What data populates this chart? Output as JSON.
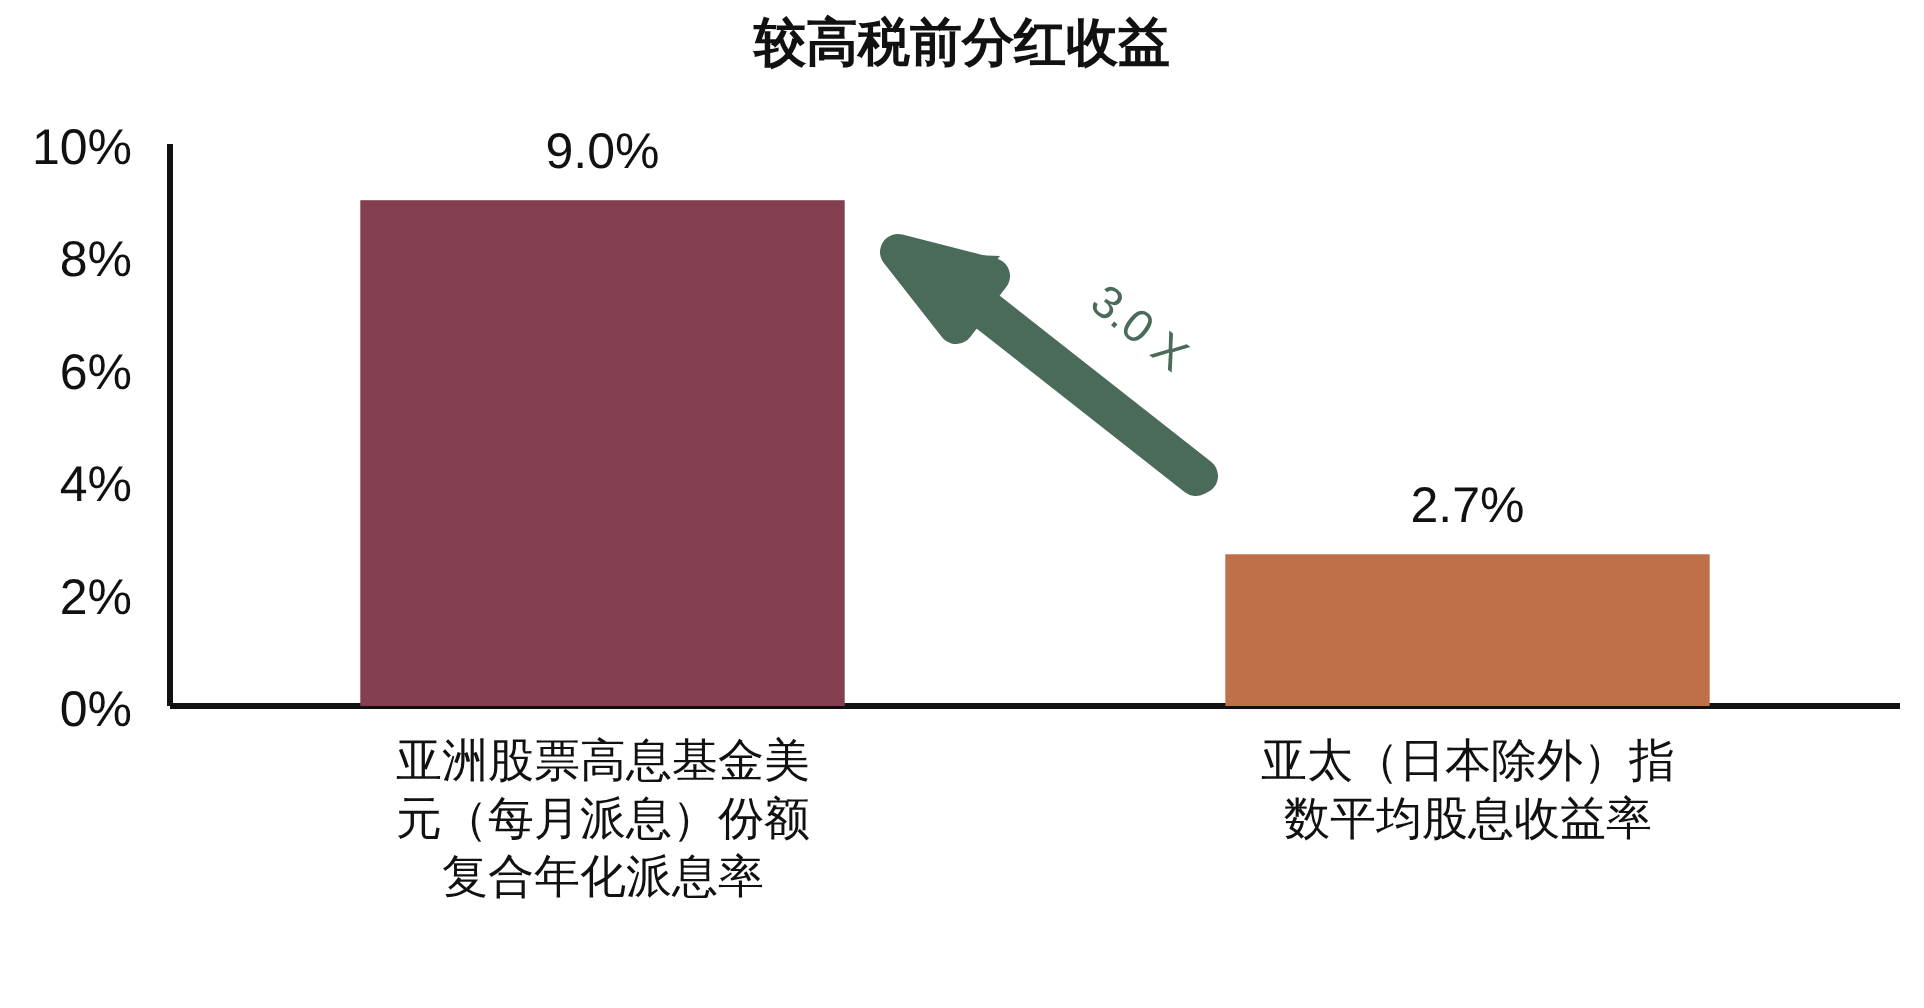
{
  "chart_data": {
    "type": "bar",
    "title": "较高税前分红收益",
    "categories": [
      "亚洲股票高息基金美元（每月派息）份额复合年化派息率",
      "亚太（日本除外）指数平均股息收益率"
    ],
    "values": [
      9.0,
      2.7
    ],
    "colors": [
      "#833f50",
      "#bf7049"
    ],
    "value_labels": [
      "9.0%",
      "2.7%"
    ],
    "ylim": [
      0,
      10
    ],
    "yticks": [
      {
        "value": 0,
        "label": "0%"
      },
      {
        "value": 2,
        "label": "2%"
      },
      {
        "value": 4,
        "label": "4%"
      },
      {
        "value": 6,
        "label": "6%"
      },
      {
        "value": 8,
        "label": "8%"
      },
      {
        "value": 10,
        "label": "10%"
      }
    ],
    "annotations": [
      "3.0 X"
    ]
  }
}
